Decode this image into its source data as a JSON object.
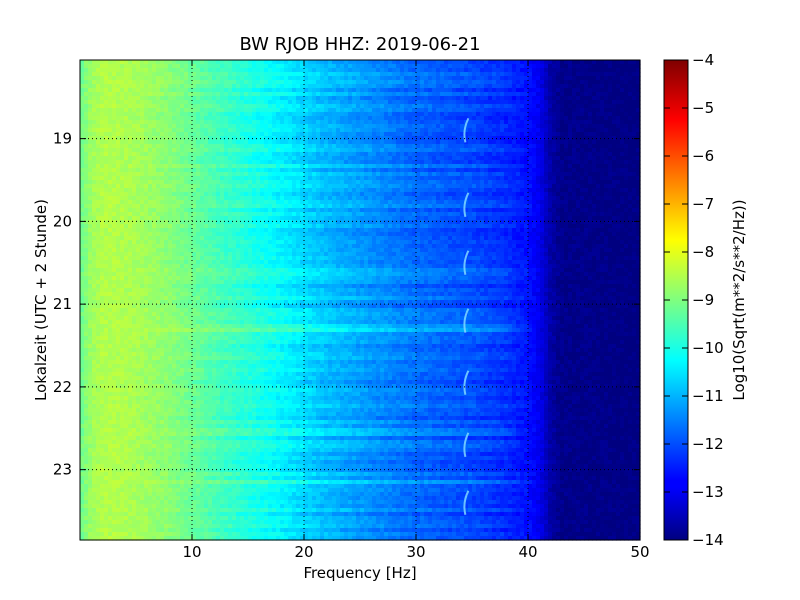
{
  "chart_data": {
    "type": "heatmap",
    "title": "BW RJOB HHZ: 2019-06-21",
    "xlabel": "Frequency [Hz]",
    "ylabel": "Lokalzeit (UTC + 2 Stunde)",
    "colorbar_label": "Log10(Sqrt(m**2/s**2/Hz))",
    "colormap": "jet",
    "grid": true,
    "xlim": [
      0,
      50
    ],
    "ylim": [
      18.05,
      23.85
    ],
    "y_inverted": true,
    "x_ticks": [
      10,
      20,
      30,
      40,
      50
    ],
    "x_tick_labels": [
      "10",
      "20",
      "30",
      "40",
      "50"
    ],
    "y_ticks": [
      19,
      20,
      21,
      22,
      23
    ],
    "y_tick_labels": [
      "19",
      "20",
      "21",
      "22",
      "23"
    ],
    "clim": [
      -14,
      -4
    ],
    "colorbar_ticks": [
      -4,
      -5,
      -6,
      -7,
      -8,
      -9,
      -10,
      -11,
      -12,
      -13,
      -14
    ],
    "colorbar_tick_labels": [
      "−4",
      "−5",
      "−6",
      "−7",
      "−8",
      "−9",
      "−10",
      "−11",
      "−12",
      "−13",
      "−14"
    ],
    "frequency_profile_hz": [
      0,
      1,
      2,
      3,
      5,
      8,
      10,
      12,
      15,
      18,
      20,
      22,
      25,
      28,
      30,
      33,
      35,
      38,
      40,
      41,
      42,
      43,
      50
    ],
    "frequency_profile_log10_psd": [
      -9.2,
      -8.7,
      -8.5,
      -8.5,
      -8.6,
      -8.9,
      -9.2,
      -9.5,
      -9.9,
      -10.3,
      -10.6,
      -10.9,
      -11.2,
      -11.5,
      -11.7,
      -11.9,
      -12.0,
      -12.3,
      -12.6,
      -12.9,
      -13.6,
      -13.9,
      -14.0
    ],
    "events": [
      {
        "time": 21.28,
        "log10_offset": 0.6
      },
      {
        "time": 21.45,
        "log10_offset": 0.4
      },
      {
        "time": 23.15,
        "log10_offset": 0.4
      },
      {
        "time": 20.62,
        "log10_offset": 0.25
      },
      {
        "time": 22.55,
        "log10_offset": 0.3
      }
    ],
    "feature_hz": 34.5,
    "feature_times": [
      18.9,
      19.8,
      20.5,
      21.2,
      21.95,
      22.7,
      23.4
    ]
  }
}
